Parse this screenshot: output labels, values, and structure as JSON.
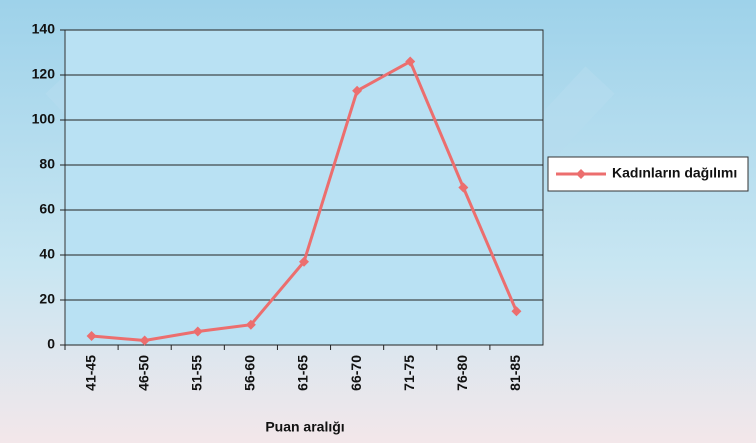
{
  "chart_data": {
    "type": "line",
    "x_label": "Puan aralığı",
    "categories": [
      "41-45",
      "46-50",
      "51-55",
      "56-60",
      "61-65",
      "66-70",
      "71-75",
      "76-80",
      "81-85"
    ],
    "series": [
      {
        "name": "Kadınların dağılımı",
        "color": "#ec6e6e",
        "values": [
          4,
          2,
          6,
          9,
          37,
          113,
          126,
          70,
          15
        ]
      }
    ],
    "ylim": [
      0,
      140
    ],
    "yticks": [
      0,
      20,
      40,
      60,
      80,
      100,
      120,
      140
    ],
    "grid": true,
    "legend": "right"
  }
}
